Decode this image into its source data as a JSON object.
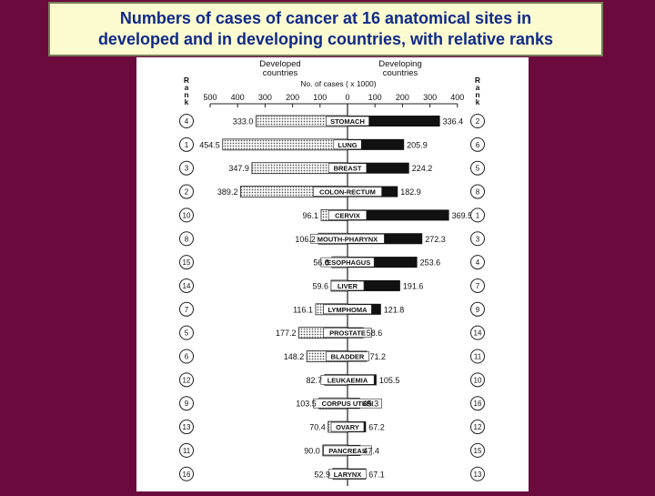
{
  "title": {
    "line1": "Numbers of cases of cancer at 16 anatomical sites in",
    "line2": "developed and in developing countries, with relative ranks"
  },
  "colors": {
    "background": "#6b0a3c",
    "title_bg": "#fbfbcf",
    "title_text": "#102a8a",
    "developed_fill": "#d8d8d8",
    "developing_fill": "#111111"
  },
  "chart_data": {
    "type": "bar",
    "orientation": "horizontal-diverging",
    "axis_title": "No. of cases ( x 1000)",
    "rank_label": "Rank",
    "left_header": [
      "Developed",
      "countries"
    ],
    "right_header": [
      "Developing",
      "countries"
    ],
    "xlim": [
      -500,
      400
    ],
    "left_ticks": [
      "500",
      "400",
      "300",
      "200",
      "100"
    ],
    "zero_tick": "0",
    "right_ticks": [
      "100",
      "200",
      "300",
      "400"
    ],
    "series": [
      {
        "name": "Developed countries"
      },
      {
        "name": "Developing countries"
      }
    ],
    "categories": [
      "STOMACH",
      "LUNG",
      "BREAST",
      "COLON-RECTUM",
      "CERVIX",
      "MOUTH-PHARYNX",
      "ŒSOPHAGUS",
      "LIVER",
      "LYMPHOMA",
      "PROSTATE",
      "BLADDER",
      "LEUKAEMIA",
      "CORPUS UTERI",
      "OVARY",
      "PANCREAS",
      "LARYNX"
    ],
    "developed_values": [
      333.0,
      454.5,
      347.9,
      389.2,
      96.1,
      106.2,
      56.8,
      59.6,
      116.1,
      177.2,
      148.2,
      82.7,
      103.5,
      70.4,
      90.0,
      52.9
    ],
    "developed_labels": [
      "333.0",
      "454.5",
      "347.9",
      "389.2",
      "96.1",
      "106.2",
      "56.8",
      "59.6",
      "116.1",
      "177.2",
      "148.2",
      "82.7",
      "103.5",
      "70.4",
      "90.0",
      "52.9"
    ],
    "developing_values": [
      336.4,
      205.9,
      224.2,
      182.9,
      369.5,
      272.3,
      253.6,
      191.6,
      121.8,
      58.6,
      71.2,
      105.5,
      45.3,
      67.2,
      47.4,
      67.1
    ],
    "developing_labels": [
      "336.4",
      "205.9",
      "224.2",
      "182.9",
      "369.5",
      "272.3",
      "253.6",
      "191.6",
      "121.8",
      "58.6",
      "71.2",
      "105.5",
      "45.3",
      "67.2",
      "47.4",
      "67.1"
    ],
    "developed_ranks": [
      "4",
      "1",
      "3",
      "2",
      "10",
      "8",
      "15",
      "14",
      "7",
      "5",
      "6",
      "12",
      "9",
      "13",
      "11",
      "16"
    ],
    "developing_ranks": [
      "2",
      "6",
      "5",
      "8",
      "1",
      "3",
      "4",
      "7",
      "9",
      "14",
      "11",
      "10",
      "16",
      "12",
      "15",
      "13"
    ]
  }
}
